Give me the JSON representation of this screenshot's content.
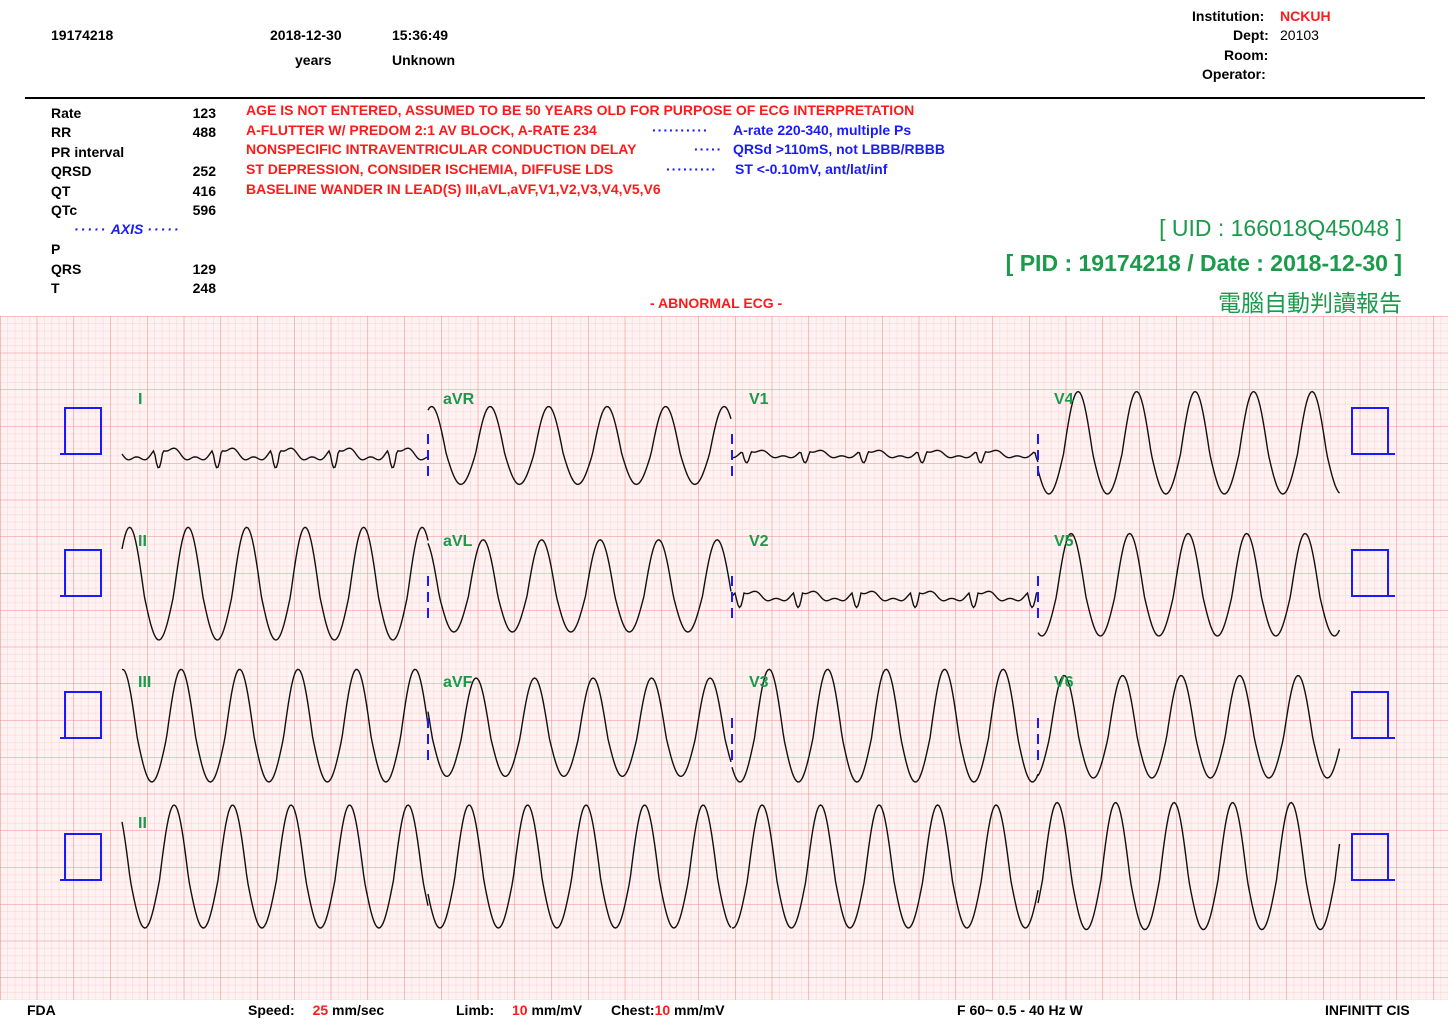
{
  "header": {
    "patient_id": "19174218",
    "date": "2018-12-30",
    "time": "15:36:49",
    "age_unit": "years",
    "sex": "Unknown",
    "institution_label": "Institution:",
    "institution_value": "NCKUH",
    "dept_label": "Dept:",
    "dept_value": "20103",
    "room_label": "Room:",
    "operator_label": "Operator:"
  },
  "measurements": [
    {
      "label": "Rate",
      "value": "123"
    },
    {
      "label": "RR",
      "value": "488"
    },
    {
      "label": "PR interval",
      "value": ""
    },
    {
      "label": "QRSD",
      "value": "252"
    },
    {
      "label": "QT",
      "value": "416"
    },
    {
      "label": "QTc",
      "value": "596"
    }
  ],
  "axis": {
    "title": "AXIS",
    "items": [
      {
        "label": "P",
        "value": ""
      },
      {
        "label": "QRS",
        "value": "129"
      },
      {
        "label": "T",
        "value": "248"
      }
    ]
  },
  "interpretation": [
    {
      "text": "AGE IS NOT ENTERED, ASSUMED TO BE 50 YEARS OLD FOR PURPOSE OF ECG INTERPRETATION",
      "criteria": ""
    },
    {
      "text": "A-FLUTTER W/ PREDOM 2:1 AV BLOCK, A-RATE 234",
      "criteria": "A-rate 220-340, multiple Ps"
    },
    {
      "text": "NONSPECIFIC INTRAVENTRICULAR CONDUCTION DELAY",
      "criteria": "QRSd >110mS, not LBBB/RBBB"
    },
    {
      "text": "ST DEPRESSION, CONSIDER ISCHEMIA, DIFFUSE LDS",
      "criteria": "ST <-0.10mV, ant/lat/inf"
    },
    {
      "text": "BASELINE WANDER IN LEAD(S) III,aVL,aVF,V1,V2,V3,V4,V5,V6",
      "criteria": ""
    }
  ],
  "stamp": {
    "uid": "[ UID : 166018Q45048 ]",
    "pid_line": "[ PID : 19174218 / Date : 2018-12-30 ]",
    "report_title": "電腦自動判讀報告"
  },
  "diagnosis": "- ABNORMAL ECG -",
  "leads": {
    "row1": [
      "I",
      "aVR",
      "V1",
      "V4"
    ],
    "row2": [
      "II",
      "aVL",
      "V2",
      "V5"
    ],
    "row3": [
      "III",
      "aVF",
      "V3",
      "V6"
    ],
    "row4": [
      "II"
    ]
  },
  "footer": {
    "standard": "FDA",
    "speed_label": "Speed:",
    "speed_value": "25",
    "speed_unit": "mm/sec",
    "limb_label": "Limb:",
    "limb_value": "10",
    "limb_unit": "mm/mV",
    "chest_label": "Chest:",
    "chest_value": "10",
    "chest_unit": "mm/mV",
    "filter": "F 60~  0.5 - 40 Hz W",
    "vendor": "INFINITT CIS"
  },
  "colors": {
    "grid_minor": "#f7c6c6",
    "grid_major": "#f08c8c",
    "paper": "#fff2f2",
    "trace": "#111111",
    "marker": "#1a1aff",
    "lead_label": "#1a9a4a"
  }
}
